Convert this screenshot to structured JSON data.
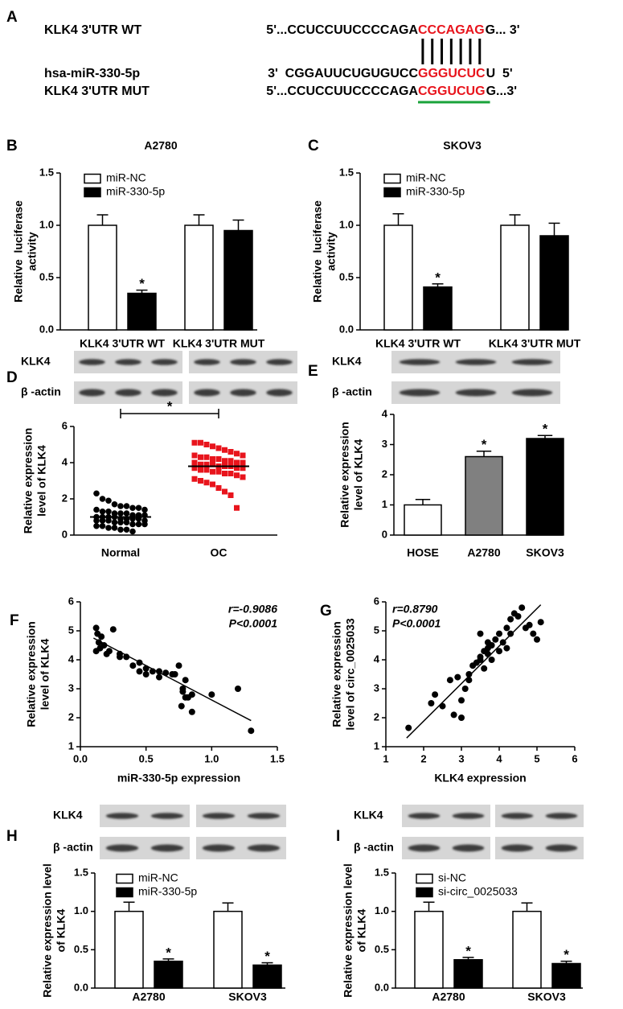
{
  "sequence_panel": {
    "panel": "A",
    "rows": [
      {
        "name": "KLK4 3'UTR WT",
        "prefix": "5'...CCUCCUUCCCCAGA",
        "match": "CCCAGAG",
        "suffix": "G... 3'"
      },
      {
        "name": "hsa-miR-330-5p",
        "prefix": "3'  CGGAUUCUGUGUCC",
        "match": "GGGUCUC",
        "suffix": "U  5'"
      },
      {
        "name": "KLK4 3'UTR MUT",
        "prefix": "5'...CCUCCUUCCCCAGA",
        "match": "CGGUCUG",
        "suffix": "G...3'"
      }
    ]
  },
  "chart_data": [
    {
      "type": "bar",
      "panel": "B",
      "title": "A2780",
      "ylabel": [
        "Relative  luciferase",
        "activity"
      ],
      "categories": [
        "KLK4 3'UTR WT",
        "KLK4 3'UTR MUT"
      ],
      "series": [
        {
          "name": "miR-NC",
          "color": "#ffffff",
          "values": [
            1.0,
            1.0
          ],
          "errors": [
            0.1,
            0.1
          ]
        },
        {
          "name": "miR-330-5p",
          "color": "#000000",
          "values": [
            0.35,
            0.95
          ],
          "errors": [
            0.03,
            0.1
          ],
          "annotations": [
            "*",
            null
          ]
        }
      ],
      "ylim": [
        0,
        1.5
      ],
      "yticks": [
        {
          "value": 0,
          "label": "0.0"
        },
        {
          "value": 0.5,
          "label": "0.5"
        },
        {
          "value": 1,
          "label": "1.0"
        },
        {
          "value": 1.5,
          "label": "1.5"
        }
      ]
    },
    {
      "type": "bar",
      "panel": "C",
      "title": "SKOV3",
      "ylabel": [
        "Relative  luciferase",
        "activity"
      ],
      "categories": [
        "KLK4 3'UTR WT",
        "KLK4 3'UTR MUT"
      ],
      "series": [
        {
          "name": "miR-NC",
          "color": "#ffffff",
          "values": [
            1.0,
            1.0
          ],
          "errors": [
            0.11,
            0.1
          ]
        },
        {
          "name": "miR-330-5p",
          "color": "#000000",
          "values": [
            0.41,
            0.9
          ],
          "errors": [
            0.03,
            0.12
          ],
          "annotations": [
            "*",
            null
          ]
        }
      ],
      "ylim": [
        0,
        1.5
      ],
      "yticks": [
        {
          "value": 0,
          "label": "0.0"
        },
        {
          "value": 0.5,
          "label": "0.5"
        },
        {
          "value": 1,
          "label": "1.0"
        },
        {
          "value": 1.5,
          "label": "1.5"
        }
      ]
    },
    {
      "type": "strip",
      "panel": "D",
      "blot_labels": [
        "KLK4",
        "β -actin"
      ],
      "ylabel": [
        "Relative expression",
        "level of KLK4"
      ],
      "categories": [
        "Normal",
        "OC"
      ],
      "series": [
        {
          "color": "#000000",
          "marker": "circle",
          "values": [
            2.3,
            2.0,
            1.9,
            1.7,
            1.6,
            1.6,
            1.5,
            1.5,
            1.4,
            1.4,
            1.3,
            1.3,
            1.2,
            1.2,
            1.2,
            1.1,
            1.1,
            1.1,
            1.0,
            1.0,
            1.0,
            1.0,
            0.9,
            0.9,
            0.9,
            0.9,
            0.8,
            0.8,
            0.8,
            0.8,
            0.7,
            0.7,
            0.7,
            0.6,
            0.6,
            0.6,
            0.5,
            0.5,
            0.4,
            0.4,
            0.3,
            0.3,
            0.2
          ]
        },
        {
          "color": "#e8141c",
          "marker": "square",
          "values": [
            5.1,
            5.1,
            5.0,
            4.9,
            4.8,
            4.7,
            4.6,
            4.5,
            4.4,
            4.4,
            4.3,
            4.3,
            4.2,
            4.2,
            4.1,
            4.1,
            4.0,
            4.0,
            4.0,
            3.9,
            3.9,
            3.9,
            3.8,
            3.8,
            3.8,
            3.7,
            3.7,
            3.7,
            3.6,
            3.6,
            3.5,
            3.5,
            3.4,
            3.4,
            3.3,
            3.2,
            3.1,
            3.0,
            2.9,
            2.8,
            2.6,
            2.4,
            2.2,
            1.5
          ]
        }
      ],
      "means": [
        1.0,
        3.8
      ],
      "significance": "*",
      "ylim": [
        0,
        6
      ],
      "yticks": [
        0,
        2,
        4,
        6
      ]
    },
    {
      "type": "bar",
      "panel": "E",
      "blot_labels": [
        "KLK4",
        "β -actin"
      ],
      "ylabel": [
        "Relative expression",
        "level of KLK4"
      ],
      "categories": [
        "HOSE",
        "A2780",
        "SKOV3"
      ],
      "values": [
        1.0,
        2.6,
        3.2
      ],
      "errors": [
        0.18,
        0.18,
        0.1
      ],
      "colors": [
        "#ffffff",
        "#808080",
        "#000000"
      ],
      "annotations": [
        null,
        "*",
        "*"
      ],
      "ylim": [
        0,
        4
      ],
      "yticks": [
        0,
        1,
        2,
        3,
        4
      ]
    },
    {
      "type": "scatter",
      "panel": "F",
      "xlabel": "miR-330-5p expression",
      "ylabel": [
        "Relative expression",
        "level of KLK4"
      ],
      "x": [
        0.12,
        0.13,
        0.14,
        0.15,
        0.16,
        0.12,
        0.18,
        0.2,
        0.25,
        0.22,
        0.3,
        0.35,
        0.4,
        0.45,
        0.5,
        0.55,
        0.6,
        0.65,
        0.7,
        0.75,
        0.78,
        0.8,
        0.82,
        0.85,
        0.5,
        0.6,
        0.3,
        0.45,
        0.72,
        0.77,
        1.0,
        1.2,
        1.3,
        0.85,
        0.78,
        0.8
      ],
      "y": [
        5.1,
        4.9,
        4.6,
        4.4,
        4.8,
        4.3,
        4.5,
        4.2,
        5.05,
        4.3,
        4.1,
        4.1,
        3.8,
        3.6,
        3.7,
        3.6,
        3.6,
        3.55,
        3.5,
        3.8,
        3.0,
        3.3,
        2.7,
        2.8,
        3.5,
        3.4,
        4.2,
        3.9,
        3.5,
        2.4,
        2.8,
        3.0,
        1.55,
        2.2,
        2.9,
        2.7
      ],
      "color": "#000000",
      "fit": {
        "x": [
          0.1,
          1.3
        ],
        "y": [
          4.75,
          1.9
        ]
      },
      "annotations": [
        "r=-0.9086",
        "P<0.0001"
      ],
      "xlim": [
        0,
        1.5
      ],
      "xticks": [
        {
          "value": 0,
          "label": "0.0"
        },
        {
          "value": 0.5,
          "label": "0.5"
        },
        {
          "value": 1,
          "label": "1.0"
        },
        {
          "value": 1.5,
          "label": "1.5"
        }
      ],
      "ylim": [
        1,
        6
      ],
      "yticks": [
        1,
        2,
        3,
        4,
        5,
        6
      ]
    },
    {
      "type": "scatter",
      "panel": "G",
      "xlabel": "KLK4 expression",
      "ylabel": [
        "Relative expression",
        "level of circ_0025033"
      ],
      "x": [
        1.6,
        2.2,
        2.3,
        2.5,
        2.7,
        2.8,
        2.9,
        3.0,
        3.0,
        3.1,
        3.2,
        3.2,
        3.3,
        3.4,
        3.5,
        3.5,
        3.6,
        3.6,
        3.7,
        3.7,
        3.8,
        3.8,
        3.9,
        4.0,
        4.0,
        4.1,
        4.2,
        4.2,
        4.3,
        4.3,
        4.4,
        4.5,
        4.6,
        4.7,
        4.8,
        4.9,
        5.0,
        5.1,
        3.5,
        3.7
      ],
      "y": [
        1.65,
        2.5,
        2.8,
        2.4,
        3.3,
        2.1,
        3.4,
        2.0,
        2.6,
        3.0,
        3.5,
        3.3,
        3.8,
        3.9,
        4.9,
        4.1,
        4.3,
        3.7,
        4.4,
        4.6,
        4.0,
        4.5,
        4.7,
        4.3,
        4.9,
        4.6,
        5.1,
        4.4,
        5.4,
        4.9,
        5.6,
        5.5,
        5.8,
        5.1,
        5.2,
        4.9,
        4.7,
        5.3,
        4.0,
        4.2
      ],
      "color": "#000000",
      "fit": {
        "x": [
          1.55,
          5.1
        ],
        "y": [
          1.3,
          5.9
        ]
      },
      "annotations": [
        "r=0.8790",
        "P<0.0001"
      ],
      "xlim": [
        1,
        6
      ],
      "xticks": [
        1,
        2,
        3,
        4,
        5,
        6
      ],
      "ylim": [
        1,
        6
      ],
      "yticks": [
        1,
        2,
        3,
        4,
        5,
        6
      ]
    },
    {
      "type": "bar",
      "panel": "H",
      "blot_labels": [
        "KLK4",
        "β -actin"
      ],
      "ylabel": [
        "Relative expression level",
        "of KLK4"
      ],
      "categories": [
        "A2780",
        "SKOV3"
      ],
      "series": [
        {
          "name": "miR-NC",
          "color": "#ffffff",
          "values": [
            1.0,
            1.0
          ],
          "errors": [
            0.12,
            0.11
          ]
        },
        {
          "name": "miR-330-5p",
          "color": "#000000",
          "values": [
            0.35,
            0.3
          ],
          "errors": [
            0.03,
            0.03
          ],
          "annotations": [
            "*",
            "*"
          ]
        }
      ],
      "ylim": [
        0,
        1.5
      ],
      "yticks": [
        {
          "value": 0,
          "label": "0.0"
        },
        {
          "value": 0.5,
          "label": "0.5"
        },
        {
          "value": 1,
          "label": "1.0"
        },
        {
          "value": 1.5,
          "label": "1.5"
        }
      ]
    },
    {
      "type": "bar",
      "panel": "I",
      "blot_labels": [
        "KLK4",
        "β -actin"
      ],
      "ylabel": [
        "Relative expression level",
        "of KLK4"
      ],
      "categories": [
        "A2780",
        "SKOV3"
      ],
      "series": [
        {
          "name": "si-NC",
          "color": "#ffffff",
          "values": [
            1.0,
            1.0
          ],
          "errors": [
            0.12,
            0.11
          ]
        },
        {
          "name": "si-circ_0025033",
          "color": "#000000",
          "values": [
            0.37,
            0.32
          ],
          "errors": [
            0.03,
            0.03
          ],
          "annotations": [
            "*",
            "*"
          ]
        }
      ],
      "ylim": [
        0,
        1.5
      ],
      "yticks": [
        {
          "value": 0,
          "label": "0.0"
        },
        {
          "value": 0.5,
          "label": "0.5"
        },
        {
          "value": 1,
          "label": "1.0"
        },
        {
          "value": 1.5,
          "label": "1.5"
        }
      ]
    }
  ]
}
